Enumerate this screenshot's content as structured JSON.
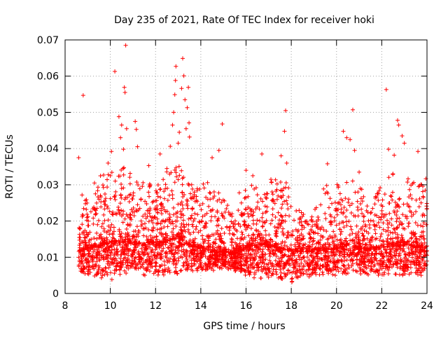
{
  "chart_data": {
    "type": "scatter",
    "title": "Day 235 of 2021, Rate Of TEC Index for receiver hoki",
    "xlabel": "GPS time / hours",
    "ylabel": "ROTI / TECUs",
    "xlim": [
      8,
      24
    ],
    "ylim": [
      0,
      0.07
    ],
    "x_ticks": [
      8,
      10,
      12,
      14,
      16,
      18,
      20,
      22,
      24
    ],
    "x_tick_labels": [
      "8",
      "10",
      "12",
      "14",
      "16",
      "18",
      "20",
      "22",
      "24"
    ],
    "y_ticks": [
      0,
      0.01,
      0.02,
      0.03,
      0.04,
      0.05,
      0.06,
      0.07
    ],
    "y_tick_labels": [
      "0",
      "0.01",
      "0.02",
      "0.03",
      "0.04",
      "0.05",
      "0.06",
      "0.07"
    ],
    "grid": true,
    "marker": "+",
    "series": [
      {
        "name": "ROTI",
        "color": "#ff0000",
        "points": [
          [
            8.6,
            0.0375
          ],
          [
            8.8,
            0.0547
          ],
          [
            8.75,
            0.0272
          ],
          [
            9.3,
            0.0305
          ],
          [
            9.5,
            0.026
          ],
          [
            9.9,
            0.036
          ],
          [
            10.0,
            0.0325
          ],
          [
            10.05,
            0.0392
          ],
          [
            10.2,
            0.0613
          ],
          [
            10.38,
            0.0488
          ],
          [
            10.45,
            0.043
          ],
          [
            10.5,
            0.0465
          ],
          [
            10.58,
            0.0398
          ],
          [
            10.6,
            0.0347
          ],
          [
            10.62,
            0.0569
          ],
          [
            10.65,
            0.0555
          ],
          [
            10.68,
            0.0685
          ],
          [
            10.72,
            0.0455
          ],
          [
            11.1,
            0.0475
          ],
          [
            11.15,
            0.0453
          ],
          [
            11.2,
            0.0405
          ],
          [
            11.7,
            0.0353
          ],
          [
            12.2,
            0.0385
          ],
          [
            12.5,
            0.0345
          ],
          [
            12.65,
            0.0406
          ],
          [
            12.75,
            0.0465
          ],
          [
            12.8,
            0.05
          ],
          [
            12.85,
            0.0549
          ],
          [
            12.88,
            0.0588
          ],
          [
            12.9,
            0.0627
          ],
          [
            13.0,
            0.0415
          ],
          [
            13.05,
            0.0445
          ],
          [
            13.15,
            0.0566
          ],
          [
            13.2,
            0.0649
          ],
          [
            13.25,
            0.0601
          ],
          [
            13.3,
            0.0535
          ],
          [
            13.35,
            0.0455
          ],
          [
            13.4,
            0.0513
          ],
          [
            13.45,
            0.0569
          ],
          [
            13.48,
            0.0471
          ],
          [
            13.5,
            0.0432
          ],
          [
            14.5,
            0.0375
          ],
          [
            14.95,
            0.0468
          ],
          [
            14.8,
            0.0395
          ],
          [
            15.7,
            0.0278
          ],
          [
            16.0,
            0.034
          ],
          [
            16.3,
            0.0325
          ],
          [
            16.7,
            0.0385
          ],
          [
            17.1,
            0.0315
          ],
          [
            17.75,
            0.0505
          ],
          [
            17.7,
            0.0448
          ],
          [
            17.8,
            0.036
          ],
          [
            17.55,
            0.038
          ],
          [
            19.6,
            0.0358
          ],
          [
            20.3,
            0.0448
          ],
          [
            20.45,
            0.043
          ],
          [
            20.6,
            0.0425
          ],
          [
            20.72,
            0.0507
          ],
          [
            20.8,
            0.0395
          ],
          [
            21.0,
            0.0335
          ],
          [
            22.2,
            0.0563
          ],
          [
            22.3,
            0.0398
          ],
          [
            22.55,
            0.0382
          ],
          [
            22.7,
            0.0478
          ],
          [
            22.75,
            0.0465
          ],
          [
            22.9,
            0.0435
          ],
          [
            23.0,
            0.0415
          ],
          [
            23.6,
            0.0392
          ],
          [
            23.95,
            0.0317
          ]
        ],
        "bulk_envelope": {
          "x": [
            8.6,
            9.0,
            9.5,
            10.0,
            10.5,
            11.0,
            11.5,
            12.0,
            12.5,
            13.0,
            13.5,
            14.0,
            14.5,
            15.0,
            15.5,
            16.0,
            16.5,
            17.0,
            17.5,
            18.0,
            18.5,
            19.0,
            19.5,
            20.0,
            20.5,
            21.0,
            21.5,
            22.0,
            22.5,
            23.0,
            23.5,
            24.0
          ],
          "median": [
            0.0115,
            0.0125,
            0.013,
            0.014,
            0.0145,
            0.014,
            0.0135,
            0.0135,
            0.0145,
            0.0155,
            0.0135,
            0.0125,
            0.012,
            0.0115,
            0.011,
            0.0125,
            0.0135,
            0.0135,
            0.0125,
            0.012,
            0.0115,
            0.012,
            0.012,
            0.0125,
            0.013,
            0.0125,
            0.012,
            0.0125,
            0.0135,
            0.0135,
            0.013,
            0.0125
          ],
          "upper": [
            0.02,
            0.028,
            0.032,
            0.036,
            0.036,
            0.034,
            0.031,
            0.03,
            0.034,
            0.036,
            0.031,
            0.03,
            0.034,
            0.026,
            0.022,
            0.03,
            0.03,
            0.03,
            0.034,
            0.028,
            0.022,
            0.024,
            0.03,
            0.03,
            0.032,
            0.03,
            0.025,
            0.03,
            0.034,
            0.032,
            0.032,
            0.03
          ],
          "lower": [
            0.005,
            0.005,
            0.004,
            0.003,
            0.005,
            0.006,
            0.005,
            0.005,
            0.005,
            0.005,
            0.006,
            0.006,
            0.006,
            0.007,
            0.006,
            0.005,
            0.004,
            0.004,
            0.004,
            0.003,
            0.004,
            0.005,
            0.005,
            0.005,
            0.005,
            0.005,
            0.005,
            0.005,
            0.005,
            0.005,
            0.005,
            0.005
          ]
        }
      }
    ]
  }
}
